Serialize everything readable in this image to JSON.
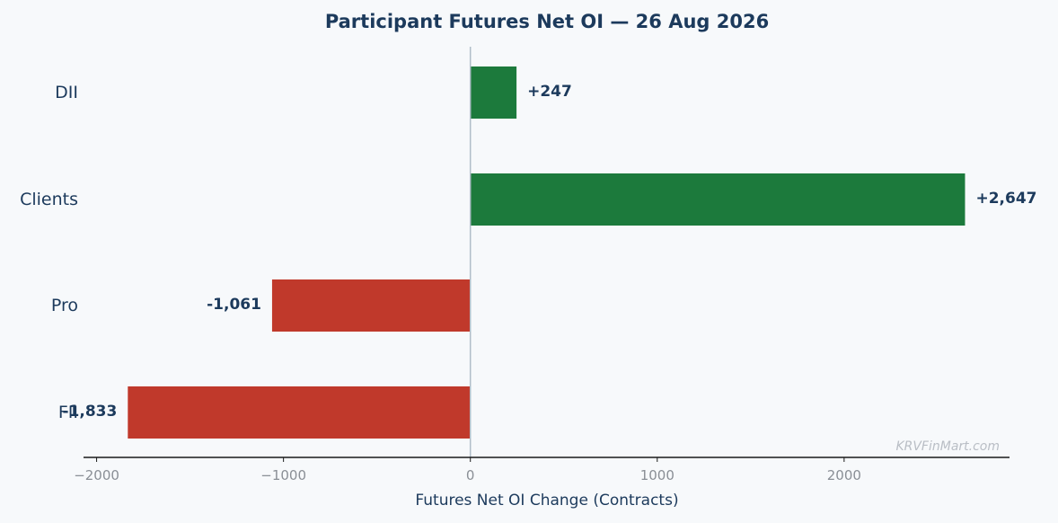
{
  "colors": {
    "background": "#f7f9fb",
    "positive": "#1c7a3c",
    "negative": "#c0392b",
    "text": "#1c3a5c",
    "tick": "#8a8f96",
    "zero_line": "#b0bec9",
    "watermark": "#b9bec5"
  },
  "chart_data": {
    "type": "bar",
    "orientation": "horizontal",
    "title": "Participant Futures Net OI — 26 Aug 2026",
    "xlabel": "Futures Net OI Change (Contracts)",
    "ylabel": "",
    "categories": [
      "DII",
      "Clients",
      "Pro",
      "FII"
    ],
    "values": [
      247,
      2647,
      -1061,
      -1833
    ],
    "value_labels": [
      "+247",
      "+2,647",
      "-1,061",
      "-1,833"
    ],
    "xlim": [
      -2070,
      2885
    ],
    "xticks": [
      -2000,
      -1000,
      0,
      1000,
      2000
    ],
    "xtick_labels": [
      "−2000",
      "−1000",
      "0",
      "1000",
      "2000"
    ],
    "grid": false,
    "legend": "none"
  },
  "watermark": "KRVFinMart.com"
}
